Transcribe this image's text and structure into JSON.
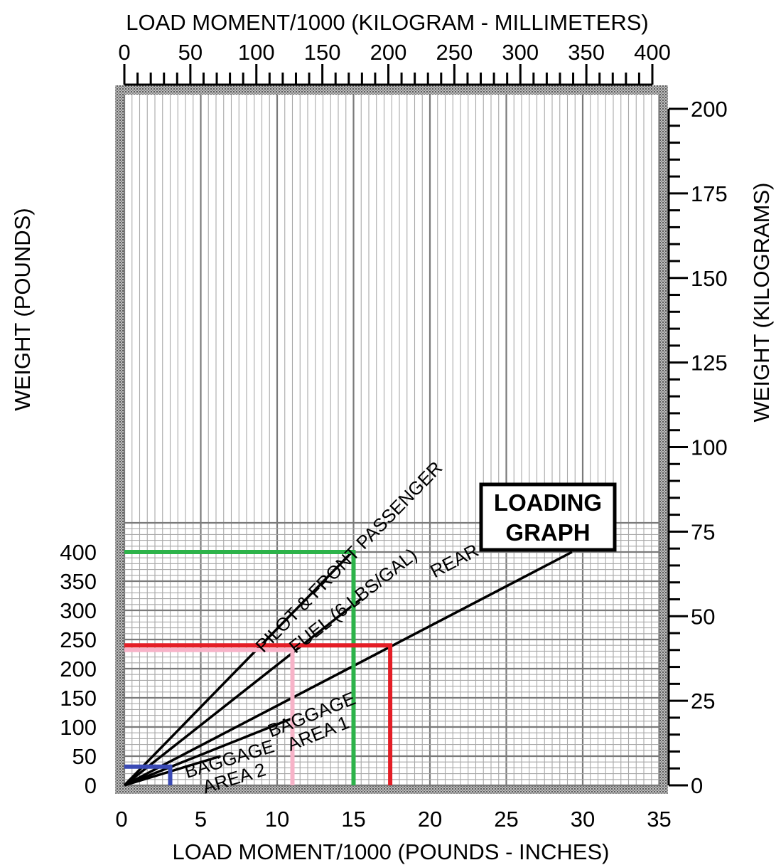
{
  "chart_data": {
    "type": "line",
    "top_axis_title": "LOAD MOMENT/1000  (KILOGRAM - MILLIMETERS)",
    "bottom_axis_title": "LOAD MOMENT/1000  (POUNDS - INCHES)",
    "left_axis_title": "WEIGHT (POUNDS)",
    "right_axis_title": "WEIGHT (KILOGRAMS)",
    "box_title_line1": "LOADING",
    "box_title_line2": "GRAPH",
    "xlim": [
      0,
      35
    ],
    "ylim": [
      0,
      450
    ],
    "x_ticks": [
      "0",
      "5",
      "10",
      "15",
      "20",
      "25",
      "30",
      "35"
    ],
    "y_ticks": [
      "0",
      "50",
      "100",
      "150",
      "200",
      "250",
      "300",
      "350",
      "400"
    ],
    "top_ticks": [
      "0",
      "50",
      "100",
      "150",
      "200",
      "250",
      "300",
      "350",
      "400"
    ],
    "right_ticks": [
      "0",
      "25",
      "50",
      "75",
      "100",
      "125",
      "150",
      "175",
      "200"
    ],
    "series": [
      {
        "name": "PILOT & FRONT PASSENGER",
        "x": [
          0,
          14.9
        ],
        "y": [
          0,
          400
        ]
      },
      {
        "name": "FUEL (6 LBS/GAL)",
        "x": [
          0,
          15.5
        ],
        "y": [
          0,
          320
        ]
      },
      {
        "name": "REAR PASSENGERS",
        "x": [
          0,
          29.3
        ],
        "y": [
          0,
          400
        ]
      },
      {
        "name": "BAGGAGE AREA 1",
        "x": [
          0,
          11.0
        ],
        "y": [
          0,
          115
        ]
      },
      {
        "name": "BAGGAGE AREA 2",
        "x": [
          0,
          6.3
        ],
        "y": [
          0,
          50
        ]
      }
    ],
    "series_labels": [
      {
        "line1": "PILOT & FRONT PASSENGER"
      },
      {
        "line1": "FUEL (6 LBS/GAL)"
      },
      {
        "line1": "REAR PASSENGERS"
      },
      {
        "line1": "BAGGAGE",
        "line2": "AREA 1"
      },
      {
        "line1": "BAGGAGE",
        "line2": "AREA 2"
      }
    ],
    "reference_paths": [
      {
        "color": "#2db34a",
        "weight": 400,
        "moment": 15.0
      },
      {
        "color": "#e41e26",
        "weight": 240,
        "moment": 17.4
      },
      {
        "color": "#f7b3c8",
        "weight": 232,
        "moment": 11.0
      },
      {
        "color": "#3a4ab5",
        "weight": 32,
        "moment": 3.0
      }
    ],
    "grid": true
  }
}
